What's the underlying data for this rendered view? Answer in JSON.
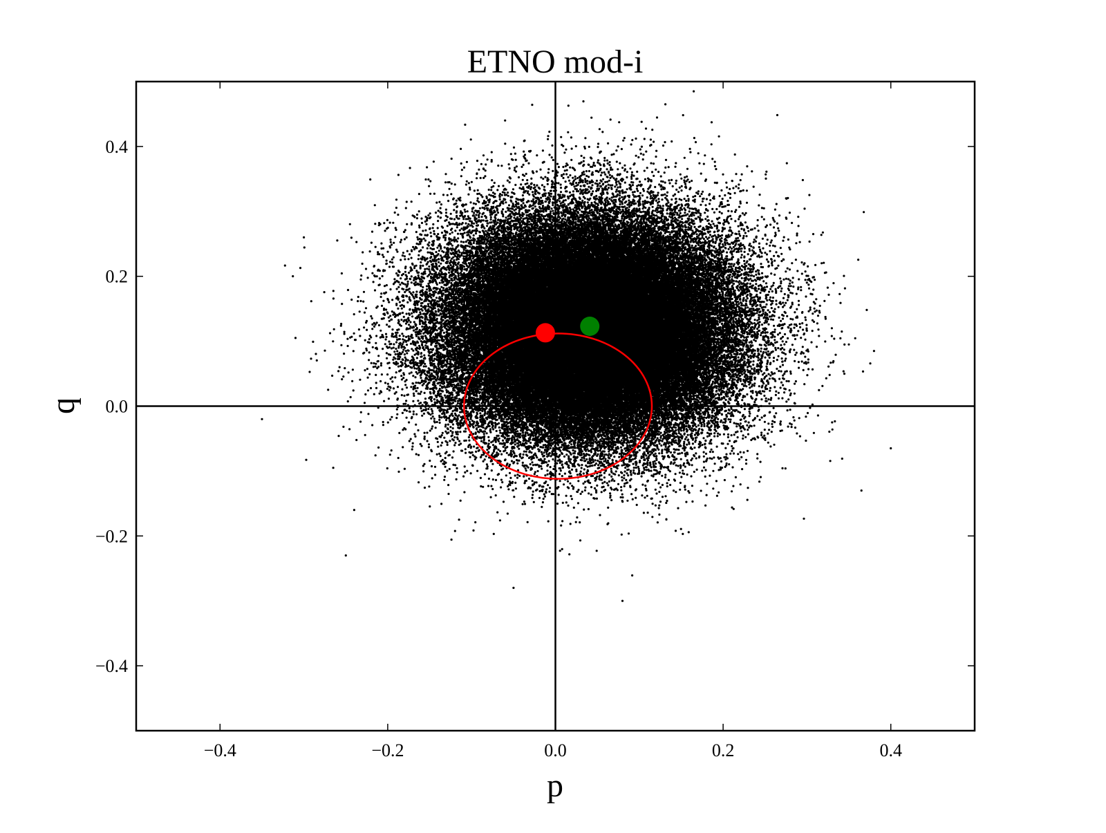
{
  "chart_data": {
    "type": "scatter",
    "title": "ETNO mod-i",
    "xlabel": "p",
    "ylabel": "q",
    "xlim": [
      -0.5,
      0.5
    ],
    "ylim": [
      -0.5,
      0.5
    ],
    "xticks": [
      -0.4,
      -0.2,
      0.0,
      0.2,
      0.4
    ],
    "yticks": [
      -0.4,
      -0.2,
      0.0,
      0.2,
      0.4
    ],
    "xtick_labels": [
      "−0.4",
      "−0.2",
      "0.0",
      "0.2",
      "0.4"
    ],
    "ytick_labels": [
      "−0.4",
      "−0.2",
      "0.0",
      "0.2",
      "0.4"
    ],
    "grid": false,
    "reference_lines": {
      "x": 0.0,
      "y": 0.0
    },
    "series": [
      {
        "kind": "scatter-cloud",
        "color": "#000000",
        "distribution": {
          "center_p": 0.04,
          "center_q": 0.12,
          "std_p": 0.085,
          "std_q": 0.085,
          "count": 90000
        },
        "outliers": [
          [
            -0.35,
            -0.02
          ],
          [
            -0.31,
            0.105
          ],
          [
            -0.3,
            0.26
          ],
          [
            -0.25,
            -0.23
          ],
          [
            -0.265,
            -0.095
          ],
          [
            -0.24,
            -0.16
          ],
          [
            -0.05,
            -0.28
          ],
          [
            0.08,
            -0.3
          ],
          [
            0.165,
            0.485
          ],
          [
            0.4,
            -0.065
          ],
          [
            0.38,
            0.085
          ],
          [
            0.365,
            -0.13
          ],
          [
            0.35,
            0.095
          ],
          [
            0.33,
            -0.025
          ],
          [
            -0.06,
            0.44
          ]
        ]
      },
      {
        "kind": "curve",
        "color": "#ff0000",
        "shape": "ellipse",
        "center": [
          0.003,
          0.0
        ],
        "radius_p": 0.112,
        "radius_q": 0.112
      },
      {
        "kind": "marker",
        "color": "#ff0000",
        "x": -0.012,
        "y": 0.113
      },
      {
        "kind": "marker",
        "color": "#008000",
        "x": 0.041,
        "y": 0.123
      }
    ]
  }
}
